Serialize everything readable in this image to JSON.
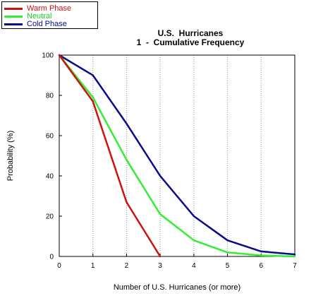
{
  "chart_data": {
    "type": "line",
    "title": "U.S.  Hurricanes",
    "subtitle": "1  -  Cumulative Frequency",
    "xlabel": "Number of U.S. Hurricanes (or more)",
    "ylabel": "Probability (%)",
    "xlim": [
      0,
      7
    ],
    "ylim": [
      0,
      100
    ],
    "x_ticks": [
      "0",
      "1",
      "2",
      "3",
      "4",
      "5",
      "6",
      "7"
    ],
    "y_ticks": [
      "0",
      "20",
      "40",
      "60",
      "80",
      "100"
    ],
    "grid": "vertical-dotted",
    "legend": "top-left",
    "series": [
      {
        "name": "Warm Phase",
        "color": "#cc1111",
        "x": [
          0,
          1,
          2,
          3
        ],
        "y": [
          100,
          77,
          27,
          0
        ]
      },
      {
        "name": "Neutral",
        "color": "#33ee33",
        "x": [
          0,
          1,
          2,
          3,
          4,
          5,
          6,
          7
        ],
        "y": [
          100,
          79,
          48,
          21,
          8,
          2,
          0.5,
          0
        ]
      },
      {
        "name": "Cold Phase",
        "color": "#0a0a8a",
        "x": [
          0,
          1,
          2,
          3,
          4,
          5,
          6,
          7
        ],
        "y": [
          100,
          90,
          66,
          40,
          20,
          8,
          2.5,
          1
        ]
      }
    ]
  }
}
